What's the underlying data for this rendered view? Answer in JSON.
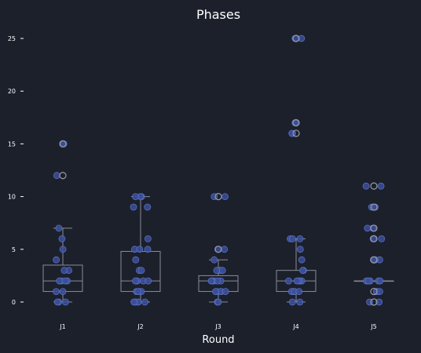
{
  "chart_data": {
    "type": "box-strip",
    "title": "Phases",
    "xlabel": "Round",
    "ylabel": "",
    "categories": [
      "J1",
      "J2",
      "J3",
      "J4",
      "J5"
    ],
    "ylim": [
      -1.2,
      26.5
    ],
    "yticks": [
      0,
      5,
      10,
      15,
      20,
      25
    ],
    "grid": false,
    "colors": {
      "background": "#1b202b",
      "box": "#8a8d94",
      "point_fill": "#3a4f9a",
      "point_stroke": "#5b6fc0",
      "outlier": "#9a9ca3"
    },
    "boxes": [
      {
        "category": "J1",
        "whisker_low": 0,
        "q1": 1,
        "median": 2,
        "q3": 3.5,
        "whisker_high": 7
      },
      {
        "category": "J2",
        "whisker_low": 0,
        "q1": 1,
        "median": 2,
        "q3": 4.8,
        "whisker_high": 10
      },
      {
        "category": "J3",
        "whisker_low": 0,
        "q1": 1,
        "median": 2,
        "q3": 2.5,
        "whisker_high": 4
      },
      {
        "category": "J4",
        "whisker_low": 0,
        "q1": 1,
        "median": 2,
        "q3": 3,
        "whisker_high": 6
      },
      {
        "category": "J5",
        "whisker_low": 2,
        "q1": 2,
        "median": 2,
        "q3": 2,
        "whisker_high": 2
      }
    ],
    "outliers": [
      {
        "category": "J1",
        "values": [
          15,
          12
        ]
      },
      {
        "category": "J3",
        "values": [
          10,
          5
        ]
      },
      {
        "category": "J4",
        "values": [
          25,
          17,
          16
        ]
      },
      {
        "category": "J5",
        "values": [
          11,
          9,
          7,
          6,
          4,
          1,
          0
        ]
      }
    ],
    "points": [
      {
        "category": "J1",
        "values": [
          15,
          15,
          12,
          7,
          6,
          5,
          4,
          3,
          3,
          2,
          2,
          2,
          2,
          1,
          1,
          0,
          0,
          0
        ]
      },
      {
        "category": "J2",
        "values": [
          10,
          10,
          10,
          9,
          9,
          6,
          5,
          5,
          5,
          4,
          3,
          3,
          2,
          2,
          2,
          2,
          1,
          1,
          1,
          1,
          0,
          0,
          0,
          0,
          0
        ]
      },
      {
        "category": "J3",
        "values": [
          10,
          10,
          5,
          5,
          4,
          3,
          3,
          3,
          2,
          2,
          2,
          2,
          2,
          2,
          1,
          1,
          1,
          1,
          1,
          0,
          0
        ]
      },
      {
        "category": "J4",
        "values": [
          25,
          25,
          17,
          17,
          16,
          16,
          6,
          6,
          6,
          5,
          4,
          3,
          3,
          2,
          2,
          2,
          2,
          2,
          1,
          1,
          1,
          1,
          1,
          0,
          0
        ]
      },
      {
        "category": "J5",
        "values": [
          11,
          11,
          9,
          9,
          7,
          7,
          6,
          6,
          4,
          4,
          4,
          2,
          2,
          2,
          2,
          2,
          2,
          1,
          1,
          1,
          1,
          0,
          0
        ]
      }
    ]
  }
}
